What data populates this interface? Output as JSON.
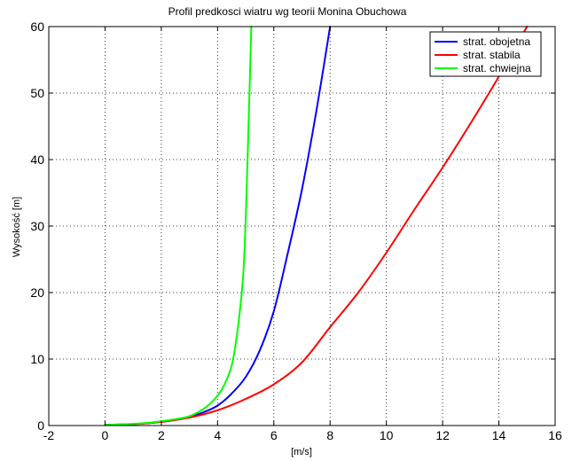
{
  "chart_data": {
    "type": "line",
    "title": "Profil predkosci wiatru wg teorii Monina Obuchowa",
    "xlabel": "[m/s]",
    "ylabel": "Wysokość [m]",
    "xlim": [
      -2,
      16
    ],
    "ylim": [
      0,
      60
    ],
    "xticks": [
      -2,
      0,
      2,
      4,
      6,
      8,
      10,
      12,
      14,
      16
    ],
    "yticks": [
      0,
      10,
      20,
      30,
      40,
      50,
      60
    ],
    "grid": true,
    "legend_position": "top-right",
    "series": [
      {
        "name": "strat. obojetna",
        "color": "#0000ff",
        "x": [
          0.0,
          0.5,
          1.0,
          1.5,
          2.0,
          2.5,
          3.0,
          3.5,
          4.0,
          4.5,
          5.0,
          5.5,
          6.0,
          6.5,
          7.0,
          7.5,
          8.0
        ],
        "y": [
          0.1,
          0.16,
          0.22,
          0.35,
          0.55,
          0.85,
          1.3,
          2.0,
          3.0,
          4.8,
          7.3,
          11.3,
          17.2,
          26.0,
          35.5,
          47.0,
          60.0
        ]
      },
      {
        "name": "strat. stabila",
        "color": "#ff0000",
        "x": [
          0.0,
          1.0,
          2.0,
          3.0,
          4.0,
          5.0,
          6.0,
          7.0,
          8.0,
          9.0,
          10.0,
          11.0,
          12.0,
          13.0,
          14.0,
          15.0
        ],
        "y": [
          0.1,
          0.2,
          0.55,
          1.2,
          2.3,
          4.0,
          6.2,
          9.5,
          14.8,
          20.0,
          26.0,
          32.5,
          38.8,
          45.5,
          52.5,
          60.0
        ]
      },
      {
        "name": "strat. chwiejna",
        "color": "#00ff00",
        "x": [
          0.0,
          0.5,
          1.0,
          1.5,
          2.0,
          2.5,
          3.0,
          3.5,
          3.9,
          4.2,
          4.5,
          4.7,
          4.9,
          5.0,
          5.1,
          5.2
        ],
        "y": [
          0.1,
          0.16,
          0.25,
          0.4,
          0.65,
          0.95,
          1.4,
          2.5,
          4.0,
          5.8,
          9.0,
          14.0,
          22.0,
          31.0,
          45.0,
          60.0
        ]
      }
    ]
  }
}
